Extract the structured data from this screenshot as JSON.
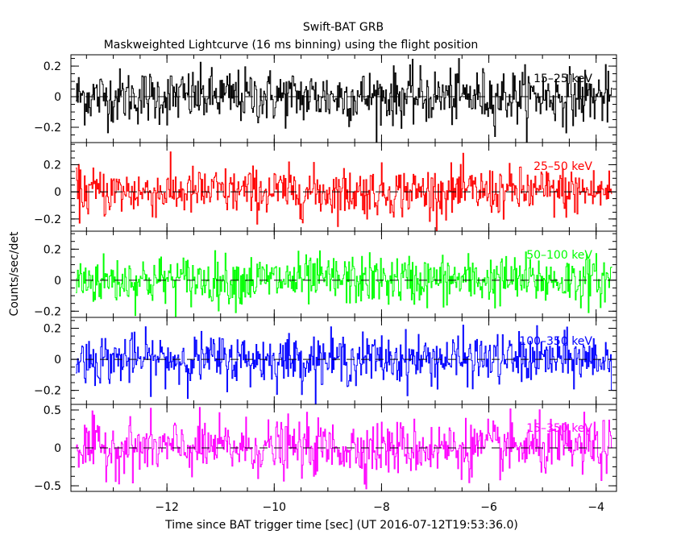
{
  "chart_data": {
    "type": "line",
    "title": "Swift-BAT GRB",
    "subtitle": "Maskweighted Lightcurve (16 ms binning) using the flight position",
    "xlabel": "Time since BAT trigger time [sec] (UT 2016-07-12T19:53:36.0)",
    "ylabel": "Counts/sec/det",
    "xlim": [
      -13.79,
      -3.62
    ],
    "x_ticks": [
      -12,
      -10,
      -8,
      -6,
      -4
    ],
    "x_tick_labels": [
      "−12",
      "−10",
      "−8",
      "−6",
      "−4"
    ],
    "bin_size_sec": 0.016,
    "data_range": [
      -13.7,
      -3.7
    ],
    "panels": [
      {
        "name": "15–25 keV",
        "color": "#000000",
        "ylim": [
          -0.3,
          0.274
        ],
        "y_ticks": [
          -0.2,
          0,
          0.2
        ],
        "y_tick_labels": [
          "−0.2",
          "0",
          "0.2"
        ],
        "noise_std": 0.09
      },
      {
        "name": "25–50 keV",
        "color": "#ff0000",
        "ylim": [
          -0.29,
          0.363
        ],
        "y_ticks": [
          -0.2,
          0,
          0.2
        ],
        "y_tick_labels": [
          "−0.2",
          "0",
          "0.2"
        ],
        "noise_std": 0.09
      },
      {
        "name": "50–100 keV",
        "color": "#00ff00",
        "ylim": [
          -0.24,
          0.316
        ],
        "y_ticks": [
          -0.2,
          0,
          0.2
        ],
        "y_tick_labels": [
          "−0.2",
          "0",
          "0.2"
        ],
        "noise_std": 0.08
      },
      {
        "name": "100–350 keV",
        "color": "#0000ff",
        "ylim": [
          -0.29,
          0.27
        ],
        "y_ticks": [
          -0.2,
          0,
          0.2
        ],
        "y_tick_labels": [
          "−0.2",
          "0",
          "0.2"
        ],
        "noise_std": 0.08
      },
      {
        "name": "15–350 keV",
        "color": "#ff00ff",
        "ylim": [
          -0.574,
          0.574
        ],
        "y_ticks": [
          -0.5,
          0,
          0.5
        ],
        "y_tick_labels": [
          "−0.5",
          "0",
          "0.5"
        ],
        "noise_std": 0.18
      }
    ],
    "grid": false,
    "zero_line": "dashed"
  }
}
